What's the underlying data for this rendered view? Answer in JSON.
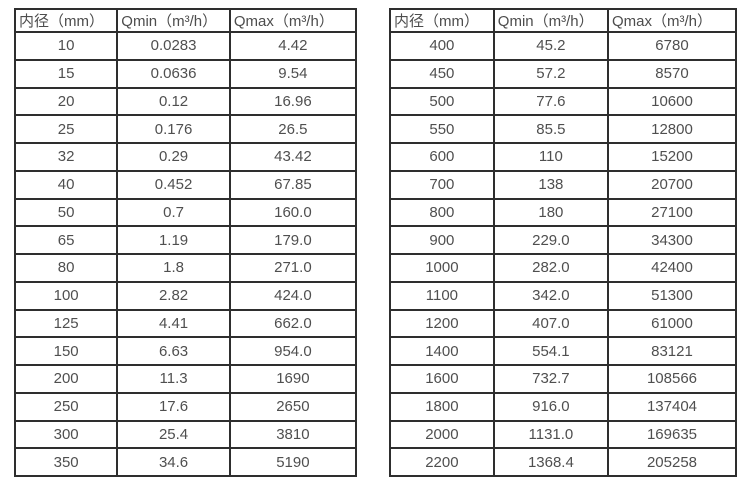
{
  "page": {
    "background_color": "#ffffff",
    "border_color": "#2e2e2e",
    "text_color": "#4d4d4d"
  },
  "tables": [
    {
      "name": "flow-rate-table-small-diameters",
      "headers": [
        "内径（mm）",
        "Qmin（m³/h）",
        "Qmax（m³/h）"
      ],
      "rows": [
        [
          "10",
          "0.0283",
          "4.42"
        ],
        [
          "15",
          "0.0636",
          "9.54"
        ],
        [
          "20",
          "0.12",
          "16.96"
        ],
        [
          "25",
          "0.176",
          "26.5"
        ],
        [
          "32",
          "0.29",
          "43.42"
        ],
        [
          "40",
          "0.452",
          "67.85"
        ],
        [
          "50",
          "0.7",
          "160.0"
        ],
        [
          "65",
          "1.19",
          "179.0"
        ],
        [
          "80",
          "1.8",
          "271.0"
        ],
        [
          "100",
          "2.82",
          "424.0"
        ],
        [
          "125",
          "4.41",
          "662.0"
        ],
        [
          "150",
          "6.63",
          "954.0"
        ],
        [
          "200",
          "11.3",
          "1690"
        ],
        [
          "250",
          "17.6",
          "2650"
        ],
        [
          "300",
          "25.4",
          "3810"
        ],
        [
          "350",
          "34.6",
          "5190"
        ]
      ]
    },
    {
      "name": "flow-rate-table-large-diameters",
      "headers": [
        "内径（mm）",
        "Qmin（m³/h）",
        "Qmax（m³/h）"
      ],
      "rows": [
        [
          "400",
          "45.2",
          "6780"
        ],
        [
          "450",
          "57.2",
          "8570"
        ],
        [
          "500",
          "77.6",
          "10600"
        ],
        [
          "550",
          "85.5",
          "12800"
        ],
        [
          "600",
          "110",
          "15200"
        ],
        [
          "700",
          "138",
          "20700"
        ],
        [
          "800",
          "180",
          "27100"
        ],
        [
          "900",
          "229.0",
          "34300"
        ],
        [
          "1000",
          "282.0",
          "42400"
        ],
        [
          "1100",
          "342.0",
          "51300"
        ],
        [
          "1200",
          "407.0",
          "61000"
        ],
        [
          "1400",
          "554.1",
          "83121"
        ],
        [
          "1600",
          "732.7",
          "108566"
        ],
        [
          "1800",
          "916.0",
          "137404"
        ],
        [
          "2000",
          "1131.0",
          "169635"
        ],
        [
          "2200",
          "1368.4",
          "205258"
        ]
      ]
    }
  ]
}
